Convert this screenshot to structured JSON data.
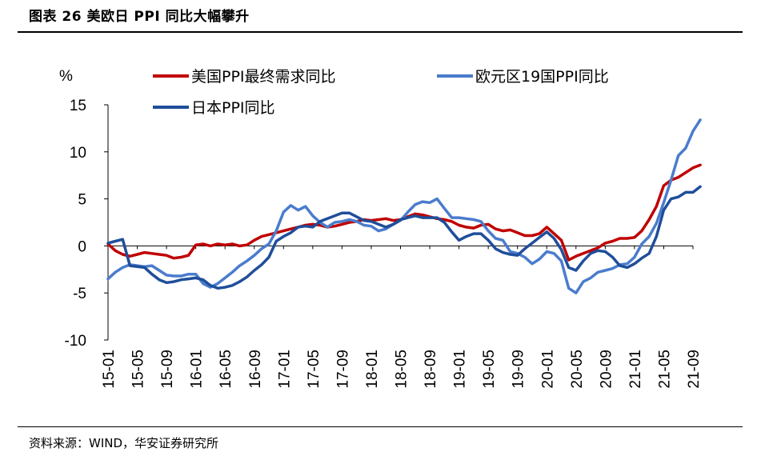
{
  "header": {
    "title": "图表 26 美欧日 PPI 同比大幅攀升"
  },
  "footer": {
    "source": "资料来源：WIND，华安证券研究所"
  },
  "chart_data": {
    "type": "line",
    "ylabel": "%",
    "ylim": [
      -10,
      15
    ],
    "yticks": [
      15,
      10,
      5,
      0,
      -5,
      -10
    ],
    "xtick_labels": [
      "15-01",
      "15-05",
      "15-09",
      "16-01",
      "16-05",
      "16-09",
      "17-01",
      "17-05",
      "17-09",
      "18-01",
      "18-05",
      "18-09",
      "19-01",
      "19-05",
      "19-09",
      "20-01",
      "20-05",
      "20-09",
      "21-01",
      "21-05",
      "21-09"
    ],
    "x_start": "2015-01",
    "x_end": "2021-09",
    "x_label_step_months": 4,
    "legend_position": "top",
    "series": [
      {
        "name": "美国PPI最终需求同比",
        "color": "#C00000",
        "values": [
          0.2,
          -0.5,
          -0.9,
          -1.1,
          -0.9,
          -0.7,
          -0.8,
          -0.9,
          -1.0,
          -1.3,
          -1.2,
          -1.0,
          0.1,
          0.2,
          0.0,
          0.2,
          0.1,
          0.2,
          0.0,
          0.1,
          0.6,
          1.0,
          1.2,
          1.4,
          1.6,
          1.8,
          2.0,
          2.2,
          2.3,
          2.2,
          2.0,
          2.1,
          2.3,
          2.5,
          2.6,
          2.8,
          2.7,
          2.8,
          2.9,
          2.7,
          2.8,
          3.1,
          3.4,
          3.3,
          3.1,
          2.9,
          2.8,
          2.6,
          2.2,
          2.0,
          1.9,
          2.2,
          2.3,
          1.8,
          1.6,
          1.7,
          1.4,
          1.1,
          1.1,
          1.3,
          2.0,
          1.3,
          0.6,
          -1.5,
          -1.1,
          -0.8,
          -0.5,
          -0.2,
          0.3,
          0.5,
          0.8,
          0.8,
          0.9,
          1.6,
          2.8,
          4.2,
          6.4,
          7.0,
          7.3,
          7.8,
          8.3,
          8.6
        ]
      },
      {
        "name": "欧元区19国PPI同比",
        "color": "#4A7CCD",
        "values": [
          -3.5,
          -2.8,
          -2.3,
          -2.0,
          -2.1,
          -2.2,
          -2.1,
          -2.6,
          -3.1,
          -3.2,
          -3.2,
          -3.0,
          -3.0,
          -4.0,
          -4.4,
          -4.0,
          -3.4,
          -2.8,
          -2.1,
          -1.6,
          -1.0,
          -0.3,
          0.2,
          1.6,
          3.6,
          4.3,
          3.8,
          4.2,
          3.2,
          2.5,
          2.0,
          2.5,
          2.6,
          2.8,
          2.6,
          2.2,
          2.1,
          1.6,
          1.8,
          2.3,
          2.7,
          3.6,
          4.4,
          4.7,
          4.6,
          5.0,
          4.0,
          3.0,
          3.0,
          2.9,
          2.8,
          2.6,
          1.6,
          0.8,
          0.6,
          -0.6,
          -0.8,
          -1.2,
          -1.9,
          -1.4,
          -0.6,
          -0.8,
          -1.6,
          -4.5,
          -5.0,
          -3.8,
          -3.4,
          -2.8,
          -2.6,
          -2.4,
          -2.0,
          -1.9,
          -1.2,
          0.2,
          1.0,
          2.4,
          4.6,
          7.0,
          9.6,
          10.4,
          12.2,
          13.4
        ]
      },
      {
        "name": "日本PPI同比",
        "color": "#1F4E9A",
        "values": [
          0.3,
          0.5,
          0.7,
          -2.1,
          -2.2,
          -2.3,
          -3.0,
          -3.6,
          -3.9,
          -3.8,
          -3.6,
          -3.5,
          -3.4,
          -3.6,
          -4.2,
          -4.5,
          -4.4,
          -4.2,
          -3.8,
          -3.3,
          -2.6,
          -2.0,
          -1.2,
          0.5,
          1.0,
          1.4,
          2.0,
          2.1,
          2.0,
          2.6,
          2.9,
          3.2,
          3.5,
          3.5,
          3.1,
          2.7,
          2.6,
          2.3,
          2.0,
          2.3,
          2.8,
          3.0,
          3.2,
          3.0,
          3.0,
          3.0,
          2.5,
          1.5,
          0.6,
          1.0,
          1.3,
          1.3,
          0.6,
          -0.3,
          -0.7,
          -0.9,
          -1.0,
          -0.3,
          0.3,
          0.9,
          1.5,
          0.8,
          -0.4,
          -2.3,
          -2.6,
          -1.6,
          -0.8,
          -0.5,
          -0.6,
          -1.2,
          -2.1,
          -2.3,
          -1.9,
          -1.3,
          -0.8,
          1.0,
          3.8,
          5.0,
          5.2,
          5.7,
          5.7,
          6.3
        ]
      }
    ]
  }
}
